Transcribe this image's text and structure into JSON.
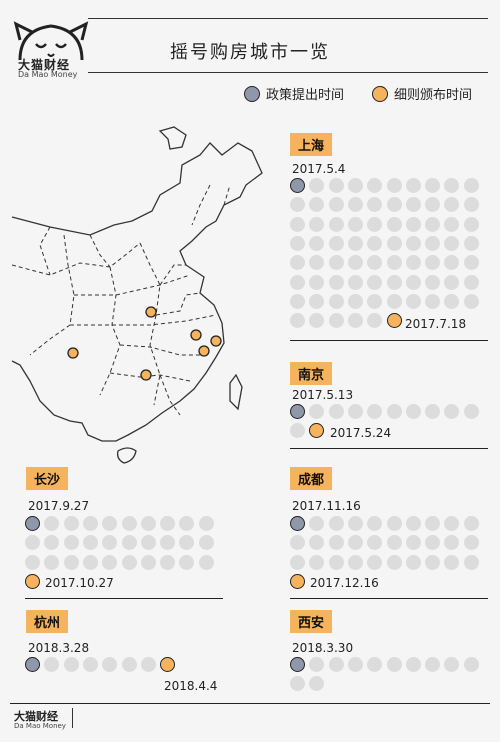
{
  "brand": {
    "name_cn": "大猫财经",
    "name_en": "Da Mao Money"
  },
  "title": "摇号购房城市一览",
  "legend": [
    {
      "label": "政策提出时间",
      "color": "#8f97ab"
    },
    {
      "label": "细则颁布时间",
      "color": "#f5b35e"
    }
  ],
  "cities": [
    {
      "name": "上海",
      "proposed": "2017.5.4",
      "issued": "2017.7.18",
      "days": 75
    },
    {
      "name": "南京",
      "proposed": "2017.5.13",
      "issued": "2017.5.24",
      "days": 11
    },
    {
      "name": "长沙",
      "proposed": "2017.9.27",
      "issued": "2017.10.27",
      "days": 30
    },
    {
      "name": "成都",
      "proposed": "2017.11.16",
      "issued": "2017.12.16",
      "days": 30
    },
    {
      "name": "杭州",
      "proposed": "2018.3.28",
      "issued": "2018.4.4",
      "days": 7
    },
    {
      "name": "西安",
      "proposed": "2018.3.30",
      "issued": "",
      "days": 11
    }
  ],
  "colors": {
    "accent": "#f5b35e",
    "proposed": "#8f97ab",
    "empty": "#dcdcdc"
  }
}
